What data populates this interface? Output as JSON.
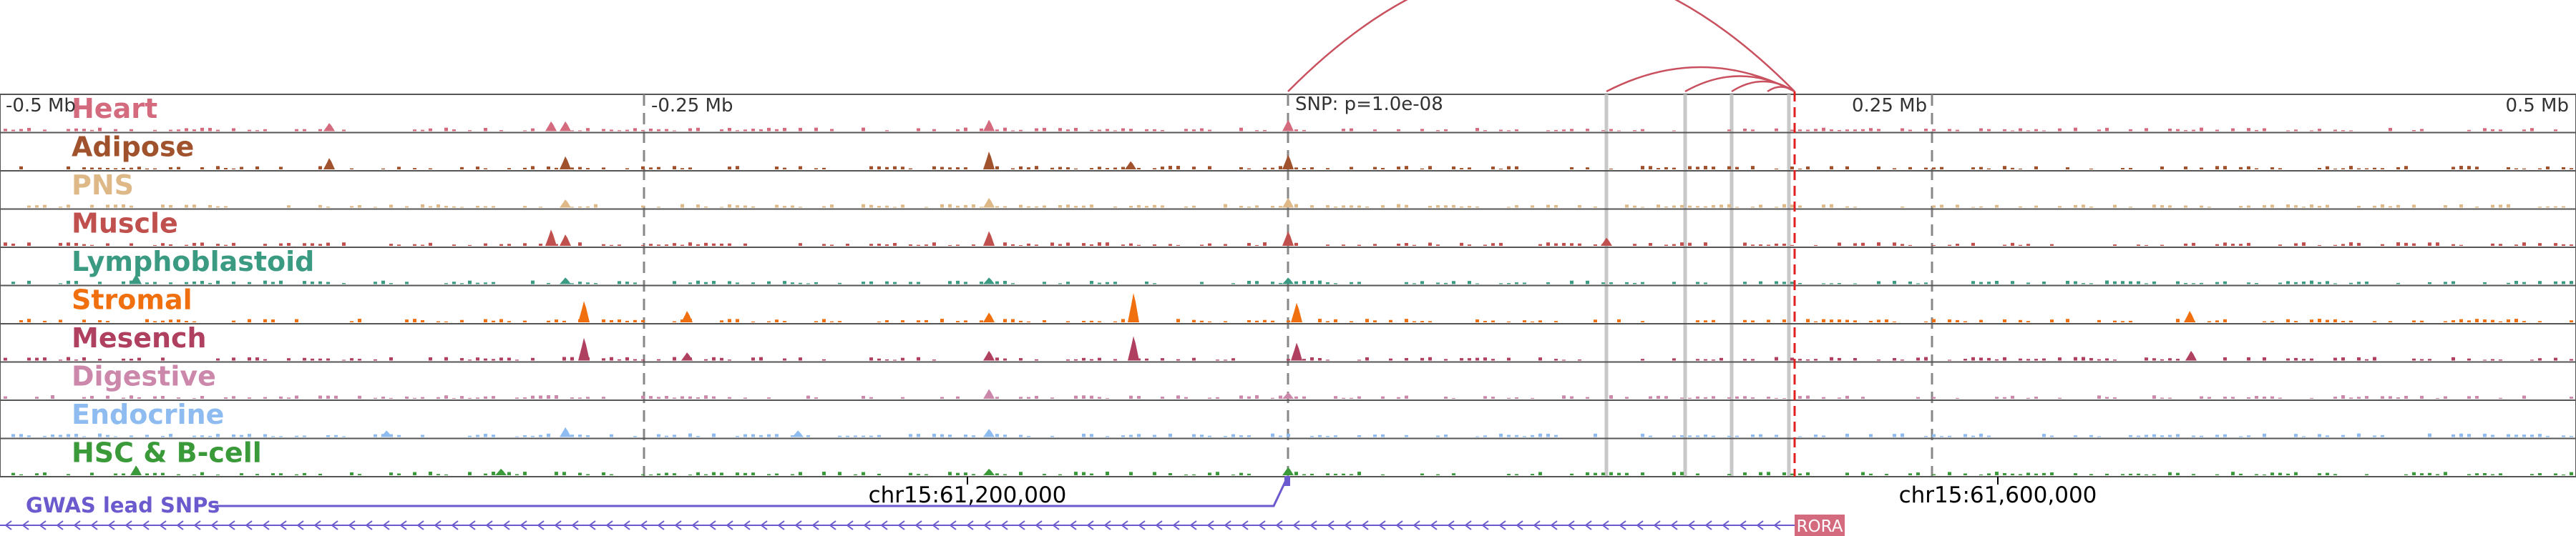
{
  "axis": {
    "ticks": [
      "-0.5 Mb",
      "-0.25 Mb",
      "0.25 Mb",
      "0.5 Mb"
    ],
    "snp_label": "SNP: p=1.0e-08"
  },
  "tracks": [
    {
      "name": "Heart",
      "color": "#d46a7e"
    },
    {
      "name": "Adipose",
      "color": "#a0522d"
    },
    {
      "name": "PNS",
      "color": "#deb887"
    },
    {
      "name": "Muscle",
      "color": "#c0504d"
    },
    {
      "name": "Lymphoblastoid",
      "color": "#3a9a82"
    },
    {
      "name": "Stromal",
      "color": "#f07010"
    },
    {
      "name": "Mesench",
      "color": "#b04060"
    },
    {
      "name": "Digestive",
      "color": "#cc88aa"
    },
    {
      "name": "Endocrine",
      "color": "#8fbcf0"
    },
    {
      "name": "HSC & B-cell",
      "color": "#3a9a3a"
    }
  ],
  "gwas": {
    "label": "GWAS lead SNPs",
    "color": "#6a5acd"
  },
  "coordinates": [
    "chr15:61,200,000",
    "chr15:61,600,000"
  ],
  "gene": {
    "name": "RORA",
    "color": "#d46a7e",
    "strand": "minus"
  },
  "loops_color": "#c9515f",
  "tss_marker_color": "#e02020"
}
